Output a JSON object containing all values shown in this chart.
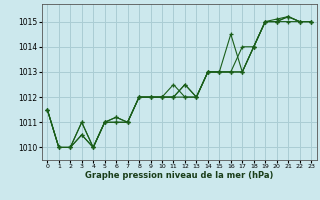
{
  "xlabel": "Graphe pression niveau de la mer (hPa)",
  "background_color": "#cce8ed",
  "grid_color": "#aacdd4",
  "line_color": "#1a5e1a",
  "ylim": [
    1009.5,
    1015.7
  ],
  "xlim": [
    -0.5,
    23.5
  ],
  "yticks": [
    1010,
    1011,
    1012,
    1013,
    1014,
    1015
  ],
  "xticks": [
    0,
    1,
    2,
    3,
    4,
    5,
    6,
    7,
    8,
    9,
    10,
    11,
    12,
    13,
    14,
    15,
    16,
    17,
    18,
    19,
    20,
    21,
    22,
    23
  ],
  "series": [
    [
      1011.5,
      1010.0,
      1010.0,
      1010.5,
      1010.0,
      1011.0,
      1011.0,
      1011.0,
      1012.0,
      1012.0,
      1012.0,
      1012.0,
      1012.5,
      1012.0,
      1013.0,
      1013.0,
      1013.0,
      1013.0,
      1014.0,
      1015.0,
      1015.0,
      1015.2,
      1015.0,
      1015.0
    ],
    [
      1011.5,
      1010.0,
      1010.0,
      1011.0,
      1010.0,
      1011.0,
      1011.2,
      1011.0,
      1012.0,
      1012.0,
      1012.0,
      1012.5,
      1012.0,
      1012.0,
      1013.0,
      1013.0,
      1014.5,
      1013.0,
      1014.0,
      1015.0,
      1015.1,
      1015.2,
      1015.0,
      1015.0
    ],
    [
      1011.5,
      1010.0,
      1010.0,
      1010.5,
      1010.0,
      1011.0,
      1011.0,
      1011.0,
      1012.0,
      1012.0,
      1012.0,
      1012.0,
      1012.0,
      1012.0,
      1013.0,
      1013.0,
      1013.0,
      1014.0,
      1014.0,
      1015.0,
      1015.0,
      1015.0,
      1015.0,
      1015.0
    ],
    [
      1011.5,
      1010.0,
      1010.0,
      1011.0,
      1010.0,
      1011.0,
      1011.2,
      1011.0,
      1012.0,
      1012.0,
      1012.0,
      1012.0,
      1012.5,
      1012.0,
      1013.0,
      1013.0,
      1013.0,
      1013.0,
      1014.0,
      1015.0,
      1015.0,
      1015.2,
      1015.0,
      1015.0
    ]
  ]
}
